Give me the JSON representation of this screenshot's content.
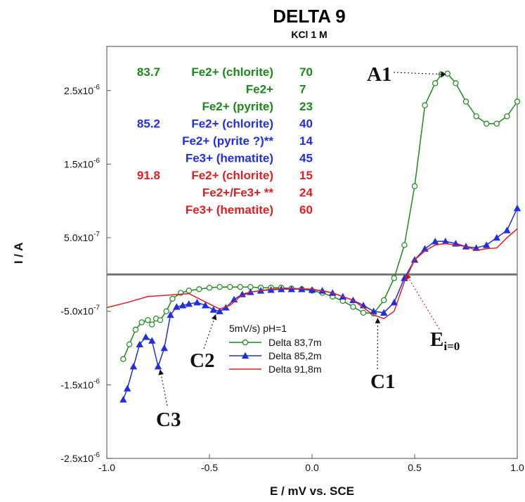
{
  "chart_data": {
    "type": "line",
    "title": "DELTA 9",
    "subtitle": "KCl 1 M",
    "xlabel": "E / mV vs. SCE",
    "ylabel": "I / A",
    "xlim": [
      -1.0,
      1.0
    ],
    "ylim": [
      -2.5e-06,
      3.1e-06
    ],
    "x_ticks": [
      {
        "value": -1.0,
        "label": "-1.0"
      },
      {
        "value": -0.5,
        "label": "-0.5"
      },
      {
        "value": 0.0,
        "label": "0.0"
      },
      {
        "value": 0.5,
        "label": "0.5"
      },
      {
        "value": 1.0,
        "label": "1.0"
      }
    ],
    "y_ticks": [
      {
        "value": 2.5e-06,
        "mant": "2.5x10",
        "exp": "-6"
      },
      {
        "value": 1.5e-06,
        "mant": "1.5x10",
        "exp": "-6"
      },
      {
        "value": 5e-07,
        "mant": "5.0x10",
        "exp": "-7"
      },
      {
        "value": -5e-07,
        "mant": "-5.0x10",
        "exp": "-7"
      },
      {
        "value": -1.5e-06,
        "mant": "-1.5x10",
        "exp": "-6"
      },
      {
        "value": -2.5e-06,
        "mant": "-2.5x10",
        "exp": "-6"
      }
    ],
    "zero_line": 0,
    "series": [
      {
        "name": "Delta 83,7m",
        "color": "#1a8a1a",
        "marker": "circle-open",
        "x": [
          -0.92,
          -0.89,
          -0.86,
          -0.83,
          -0.8,
          -0.78,
          -0.76,
          -0.74,
          -0.71,
          -0.68,
          -0.64,
          -0.6,
          -0.55,
          -0.5,
          -0.45,
          -0.4,
          -0.35,
          -0.3,
          -0.25,
          -0.2,
          -0.15,
          -0.1,
          -0.05,
          0.0,
          0.05,
          0.1,
          0.15,
          0.2,
          0.25,
          0.3,
          0.35,
          0.4,
          0.45,
          0.5,
          0.55,
          0.6,
          0.63,
          0.66,
          0.7,
          0.75,
          0.8,
          0.85,
          0.9,
          0.95,
          1.0
        ],
        "y": [
          -1.15e-06,
          -9.5e-07,
          -7.5e-07,
          -6.5e-07,
          -6.2e-07,
          -6.8e-07,
          -6e-07,
          -6.2e-07,
          -5e-07,
          -3.3e-07,
          -2.5e-07,
          -2.2e-07,
          -2e-07,
          -1.8e-07,
          -1.7e-07,
          -1.7e-07,
          -1.7e-07,
          -1.7e-07,
          -1.8e-07,
          -1.8e-07,
          -1.8e-07,
          -1.9e-07,
          -2e-07,
          -2.2e-07,
          -2.5e-07,
          -3e-07,
          -3.6e-07,
          -4.4e-07,
          -5.2e-07,
          -5.3e-07,
          -3.5e-07,
          -5e-08,
          4e-07,
          1.2e-06,
          2.3e-06,
          2.6e-06,
          2.72e-06,
          2.73e-06,
          2.6e-06,
          2.35e-06,
          2.15e-06,
          2.05e-06,
          2.05e-06,
          2.15e-06,
          2.35e-06
        ]
      },
      {
        "name": "Delta 85,2m",
        "color": "#1f2ee0",
        "marker": "triangle-filled",
        "x": [
          -0.92,
          -0.9,
          -0.87,
          -0.84,
          -0.81,
          -0.78,
          -0.75,
          -0.72,
          -0.69,
          -0.66,
          -0.63,
          -0.6,
          -0.56,
          -0.52,
          -0.48,
          -0.45,
          -0.42,
          -0.38,
          -0.34,
          -0.3,
          -0.25,
          -0.2,
          -0.15,
          -0.1,
          -0.05,
          0.0,
          0.05,
          0.1,
          0.15,
          0.2,
          0.25,
          0.3,
          0.35,
          0.4,
          0.45,
          0.5,
          0.55,
          0.6,
          0.65,
          0.7,
          0.75,
          0.8,
          0.85,
          0.9,
          0.95,
          1.0
        ],
        "y": [
          -1.7e-06,
          -1.55e-06,
          -1.25e-06,
          -9.5e-07,
          -8.5e-07,
          -9e-07,
          -1.25e-06,
          -1e-06,
          -5.5e-07,
          -4.4e-07,
          -4.2e-07,
          -4e-07,
          -3.8e-07,
          -4.2e-07,
          -4.8e-07,
          -5e-07,
          -4.5e-07,
          -3.4e-07,
          -2.7e-07,
          -2.4e-07,
          -2.2e-07,
          -2.1e-07,
          -2e-07,
          -2e-07,
          -2e-07,
          -2.1e-07,
          -2.2e-07,
          -2.5e-07,
          -3e-07,
          -3.5e-07,
          -4.2e-07,
          -5e-07,
          -5.2e-07,
          -3.8e-07,
          -5e-08,
          2e-07,
          3.5e-07,
          4.5e-07,
          4.5e-07,
          4.2e-07,
          3.8e-07,
          3.6e-07,
          4e-07,
          5e-07,
          6e-07,
          9e-07
        ]
      },
      {
        "name": "Delta 91,8m",
        "color": "#e02020",
        "marker": "none",
        "x": [
          -1.0,
          -0.9,
          -0.8,
          -0.7,
          -0.6,
          -0.5,
          -0.45,
          -0.4,
          -0.35,
          -0.3,
          -0.2,
          -0.1,
          0.0,
          0.1,
          0.2,
          0.25,
          0.3,
          0.35,
          0.4,
          0.45,
          0.5,
          0.55,
          0.6,
          0.65,
          0.7,
          0.75,
          0.8,
          0.85,
          0.9,
          0.95,
          1.0
        ],
        "y": [
          -4.5e-07,
          -3.8e-07,
          -3e-07,
          -2.8e-07,
          -2.6e-07,
          -4e-07,
          -4.7e-07,
          -4.2e-07,
          -3e-07,
          -2.4e-07,
          -2e-07,
          -1.9e-07,
          -2e-07,
          -2.5e-07,
          -3.5e-07,
          -4.5e-07,
          -5.5e-07,
          -6e-07,
          -5e-07,
          -1e-07,
          2e-07,
          3.2e-07,
          4e-07,
          4.2e-07,
          4e-07,
          3.8e-07,
          3.3e-07,
          3.5e-07,
          3.6e-07,
          5e-07,
          6.2e-07
        ]
      }
    ],
    "legend": {
      "title": "5mV/s) pH=1",
      "placement": "lower-center",
      "entries": [
        "Delta 83,7m",
        "Delta 85,2m",
        "Delta 91,8m"
      ]
    },
    "annotation_table": [
      {
        "depth": "83.7",
        "species": "Fe2+ (chlorite)",
        "value": "70",
        "color": "#1a8a1a"
      },
      {
        "depth": "",
        "species": "Fe2+",
        "value": "7",
        "color": "#1a8a1a"
      },
      {
        "depth": "",
        "species": "Fe2+ (pyrite)",
        "value": "23",
        "color": "#1a8a1a"
      },
      {
        "depth": "85.2",
        "species": "Fe2+ (chlorite)",
        "value": "40",
        "color": "#1f2ee0"
      },
      {
        "depth": "",
        "species": "Fe2+ (pyrite ?)**",
        "value": "14",
        "color": "#1f2ee0"
      },
      {
        "depth": "",
        "species": "Fe3+ (hematite)",
        "value": "45",
        "color": "#1f2ee0"
      },
      {
        "depth": "91.8",
        "species": "Fe2+ (chlorite)",
        "value": "15",
        "color": "#e02020"
      },
      {
        "depth": "",
        "species": "Fe2+/Fe3+ **",
        "value": "24",
        "color": "#e02020"
      },
      {
        "depth": "",
        "species": "Fe3+ (hematite)",
        "value": "60",
        "color": "#e02020"
      }
    ],
    "callouts": [
      {
        "label": "A1",
        "x": 0.65,
        "y": 2.72e-06
      },
      {
        "label": "C1",
        "x": 0.32,
        "y": -6e-07
      },
      {
        "label": "C2",
        "x": -0.47,
        "y": -5.5e-07
      },
      {
        "label": "C3",
        "x": -0.74,
        "y": -1.3e-06
      },
      {
        "label": "E",
        "sub": "i=0",
        "x": 0.46,
        "y": 0.0
      }
    ]
  }
}
